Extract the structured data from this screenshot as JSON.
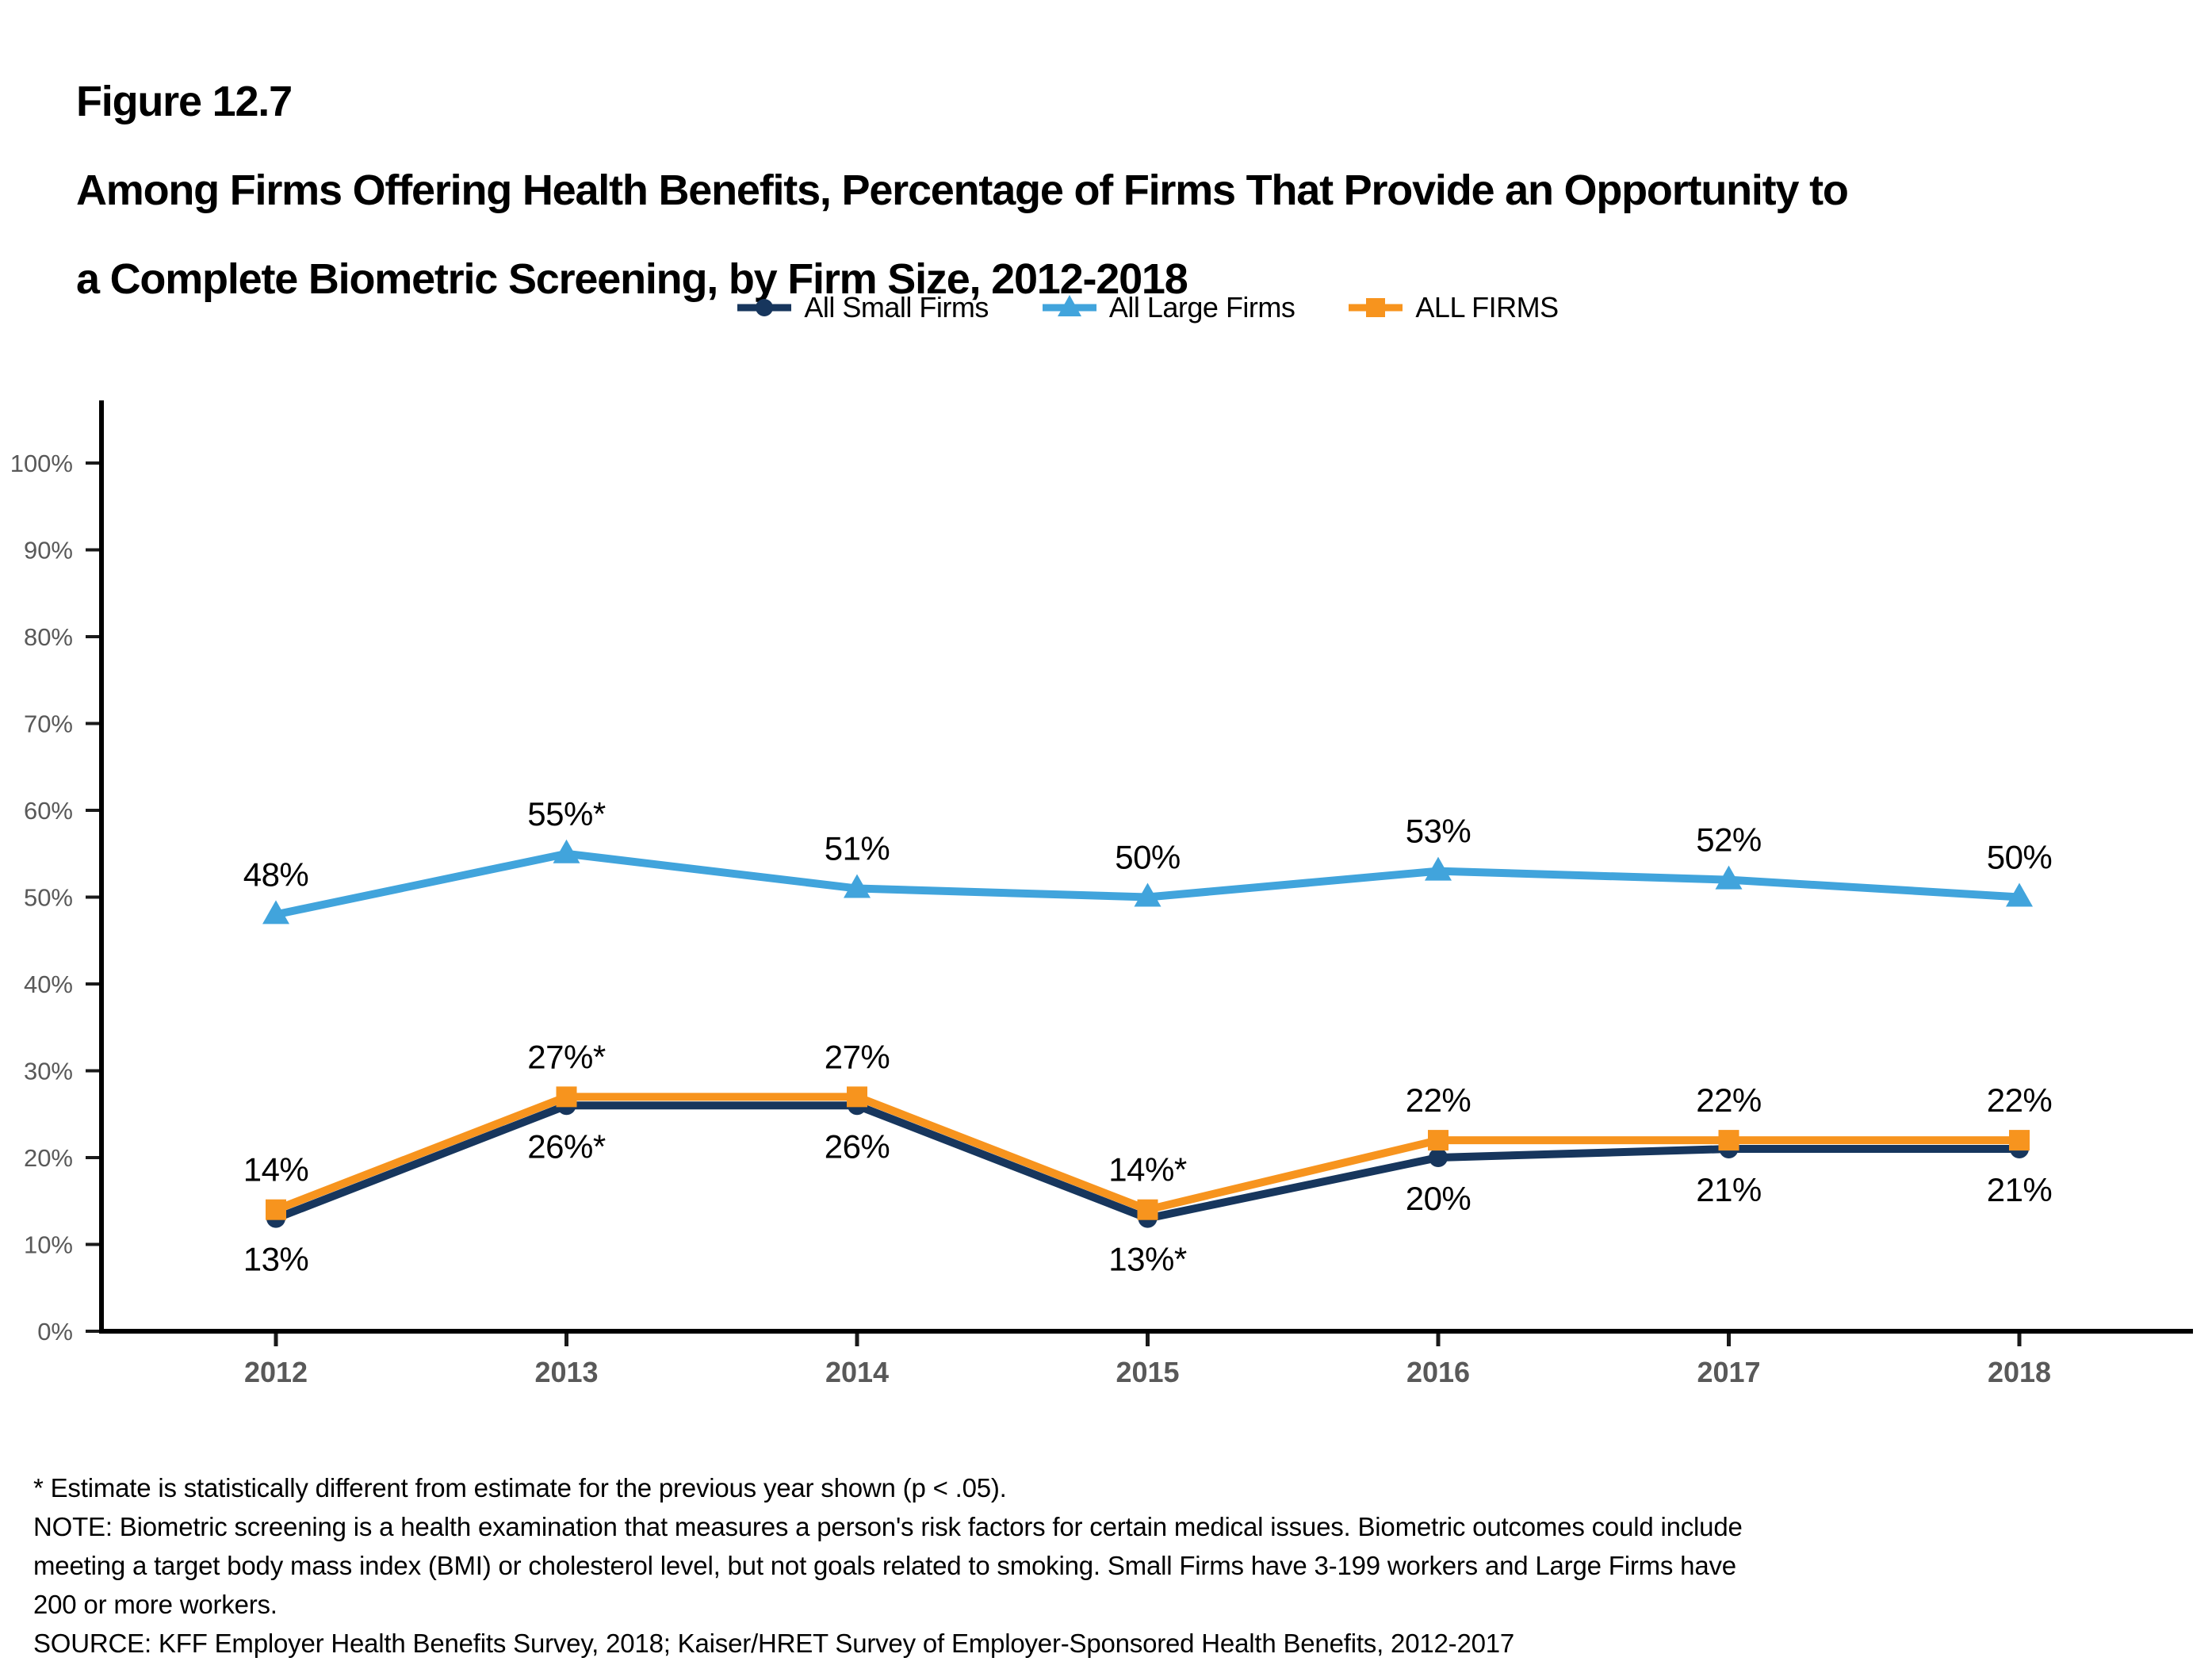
{
  "figure": {
    "number": "Figure 12.7",
    "title_line1": "Among Firms Offering Health Benefits, Percentage of Firms That Provide an Opportunity to",
    "title_line2": "a Complete Biometric Screening, by Firm Size, 2012-2018"
  },
  "footnotes": {
    "asterisk": "* Estimate is statistically different from estimate for the previous year shown (p < .05).",
    "note_line1": "NOTE: Biometric screening is a health examination that measures a person's risk factors for certain medical issues. Biometric outcomes could include",
    "note_line2": "meeting a target body mass index (BMI) or cholesterol level, but not goals related to smoking. Small Firms have 3-199 workers and Large Firms have",
    "note_line3": "200 or more workers.",
    "source": "SOURCE: KFF Employer Health Benefits Survey, 2018; Kaiser/HRET Survey of Employer-Sponsored Health Benefits, 2012-2017"
  },
  "chart_data": {
    "type": "line",
    "title": "Among Firms Offering Health Benefits, Percentage of Firms That Provide an Opportunity to a Complete Biometric Screening, by Firm Size, 2012-2018",
    "categories": [
      "2012",
      "2013",
      "2014",
      "2015",
      "2016",
      "2017",
      "2018"
    ],
    "series": [
      {
        "name": "All Small Firms",
        "color": "#17365D",
        "marker": "circle",
        "values": [
          13,
          26,
          26,
          13,
          20,
          21,
          21
        ],
        "labels": [
          "13%",
          "26%*",
          "26%",
          "13%*",
          "20%",
          "21%",
          "21%"
        ],
        "label_position": "below"
      },
      {
        "name": "All Large Firms",
        "color": "#41A4DC",
        "marker": "triangle",
        "values": [
          48,
          55,
          51,
          50,
          53,
          52,
          50
        ],
        "labels": [
          "48%",
          "55%*",
          "51%",
          "50%",
          "53%",
          "52%",
          "50%"
        ],
        "label_position": "above"
      },
      {
        "name": "ALL FIRMS",
        "color": "#F7941E",
        "marker": "square",
        "values": [
          14,
          27,
          27,
          14,
          22,
          22,
          22
        ],
        "labels": [
          "14%",
          "27%*",
          "27%",
          "14%*",
          "22%",
          "22%",
          "22%"
        ],
        "label_position": "above"
      }
    ],
    "y_axis": {
      "min": 0,
      "max": 100,
      "step": 10,
      "suffix": "%"
    },
    "xlabel": "",
    "ylabel": "",
    "legend_position": "top",
    "grid": false
  }
}
